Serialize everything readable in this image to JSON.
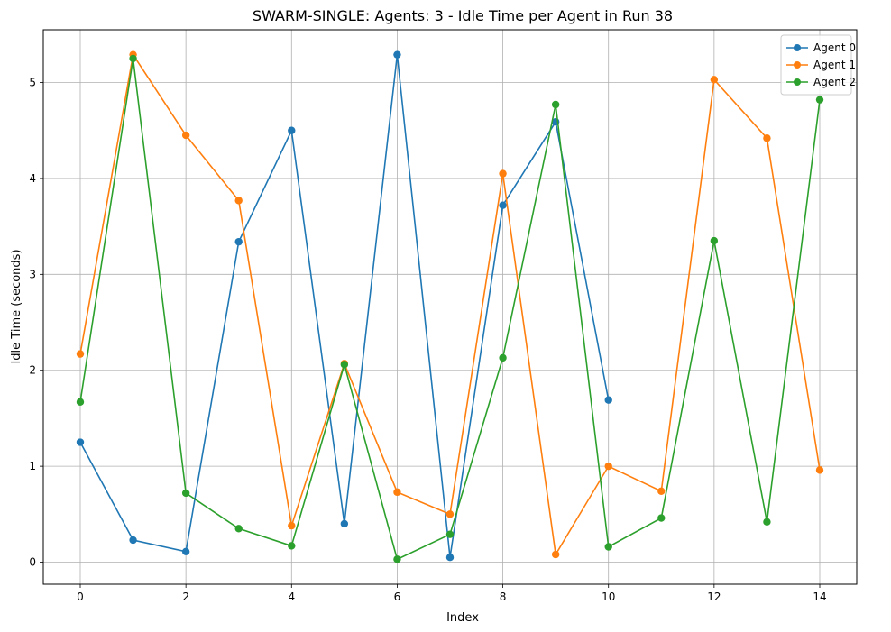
{
  "chart_data": {
    "type": "line",
    "title": "SWARM-SINGLE: Agents: 3 - Idle Time per Agent in Run 38",
    "xlabel": "Index",
    "ylabel": "Idle Time (seconds)",
    "xlim": [
      -0.7,
      14.7
    ],
    "ylim": [
      -0.23,
      5.55
    ],
    "xticks": [
      0,
      2,
      4,
      6,
      8,
      10,
      12,
      14
    ],
    "yticks": [
      0,
      1,
      2,
      3,
      4,
      5
    ],
    "grid": true,
    "legend_position": "top-right",
    "series": [
      {
        "name": "Agent 0",
        "color": "#1f77b4",
        "x": [
          0,
          1,
          2,
          3,
          4,
          5,
          6,
          7,
          8,
          9,
          10
        ],
        "values": [
          1.25,
          0.23,
          0.11,
          3.34,
          4.5,
          0.4,
          5.29,
          0.05,
          3.72,
          4.59,
          1.69
        ]
      },
      {
        "name": "Agent 1",
        "color": "#ff7f0e",
        "x": [
          0,
          1,
          2,
          3,
          4,
          5,
          6,
          7,
          8,
          9,
          10,
          11,
          12,
          13,
          14
        ],
        "values": [
          2.17,
          5.29,
          4.45,
          3.77,
          0.38,
          2.07,
          0.73,
          0.5,
          4.05,
          0.08,
          1.0,
          0.74,
          5.03,
          4.42,
          0.96
        ]
      },
      {
        "name": "Agent 2",
        "color": "#2ca02c",
        "x": [
          0,
          1,
          2,
          3,
          4,
          5,
          6,
          7,
          8,
          9,
          10,
          11,
          12,
          13,
          14
        ],
        "values": [
          1.67,
          5.25,
          0.72,
          0.35,
          0.17,
          2.06,
          0.03,
          0.29,
          2.13,
          4.77,
          0.16,
          0.46,
          3.35,
          0.42,
          4.82
        ]
      }
    ]
  }
}
